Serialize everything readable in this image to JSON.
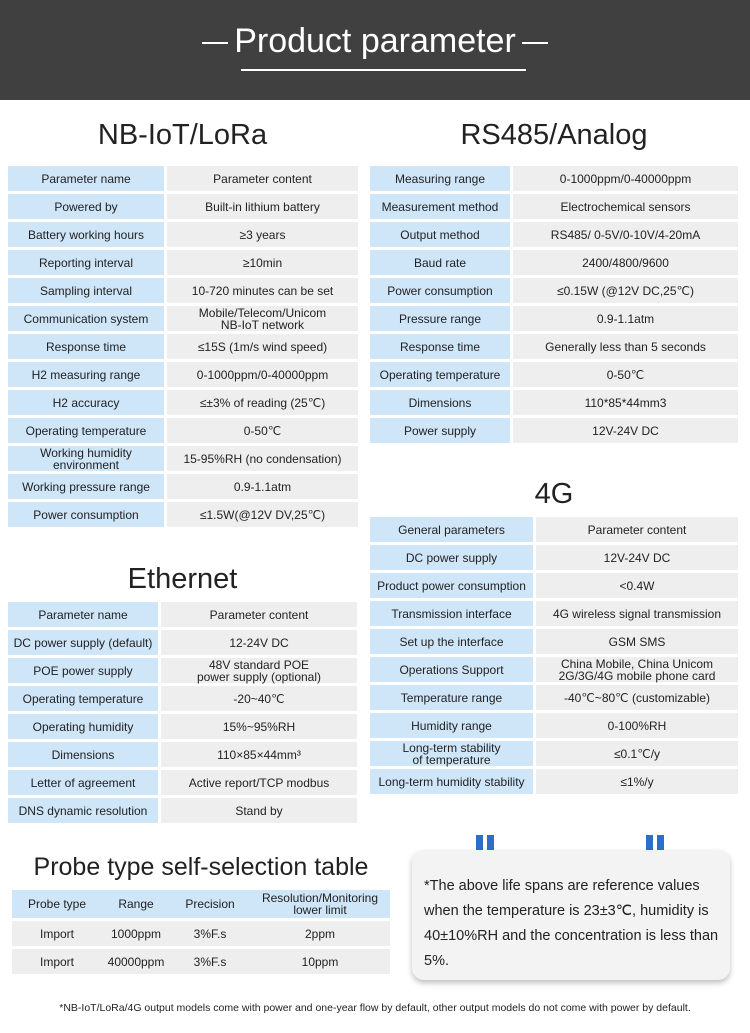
{
  "header": {
    "title": "Product parameter"
  },
  "nb": {
    "title": "NB-IoT/LoRa",
    "rows": [
      [
        "Parameter name",
        "Parameter content"
      ],
      [
        "Powered by",
        "Built-in lithium battery"
      ],
      [
        "Battery working hours",
        "≥3 years"
      ],
      [
        "Reporting interval",
        "≥10min"
      ],
      [
        "Sampling interval",
        "10-720 minutes can be set"
      ],
      [
        "Communication system",
        "Mobile/Telecom/Unicom\nNB-IoT network"
      ],
      [
        "Response time",
        "≤15S (1m/s wind speed)"
      ],
      [
        "H2 measuring range",
        "0-1000ppm/0-40000ppm"
      ],
      [
        "H2 accuracy",
        "≤±3% of reading (25℃)"
      ],
      [
        "Operating temperature",
        "0-50℃"
      ],
      [
        "Working humidity\nenvironment",
        "15-95%RH (no condensation)"
      ],
      [
        "Working pressure range",
        "0.9-1.1atm"
      ],
      [
        "Power consumption",
        "≤1.5W(@12V DV,25℃)"
      ]
    ]
  },
  "rs": {
    "title": "RS485/Analog",
    "rows": [
      [
        "Measuring range",
        "0-1000ppm/0-40000ppm"
      ],
      [
        "Measurement method",
        "Electrochemical sensors"
      ],
      [
        "Output method",
        "RS485/ 0-5V/0-10V/4-20mA"
      ],
      [
        "Baud rate",
        "2400/4800/9600"
      ],
      [
        "Power consumption",
        "≤0.15W (@12V DC,25℃)"
      ],
      [
        "Pressure range",
        "0.9-1.1atm"
      ],
      [
        "Response time",
        "Generally less than 5 seconds"
      ],
      [
        "Operating temperature",
        "0-50℃"
      ],
      [
        "Dimensions",
        "110*85*44mm3"
      ],
      [
        "Power supply",
        "12V-24V DC"
      ]
    ]
  },
  "g4": {
    "title": "4G",
    "rows": [
      [
        "General parameters",
        "Parameter content"
      ],
      [
        "DC power supply",
        "12V-24V DC"
      ],
      [
        "Product power consumption",
        "<0.4W"
      ],
      [
        "Transmission interface",
        "4G wireless signal transmission"
      ],
      [
        "Set up the interface",
        "GSM SMS"
      ],
      [
        "Operations Support",
        "China Mobile, China Unicom\n2G/3G/4G mobile phone card"
      ],
      [
        "Temperature range",
        "-40℃~80℃ (customizable)"
      ],
      [
        "Humidity range",
        "0-100%RH"
      ],
      [
        "Long-term stability\nof temperature",
        "≤0.1℃/y"
      ],
      [
        "Long-term humidity stability",
        "≤1%/y"
      ]
    ]
  },
  "eth": {
    "title": "Ethernet",
    "rows": [
      [
        "Parameter name",
        "Parameter content"
      ],
      [
        "DC power supply (default)",
        "12-24V DC"
      ],
      [
        "POE power supply",
        "48V standard POE\npower supply (optional)"
      ],
      [
        "Operating temperature",
        "-20~40℃"
      ],
      [
        "Operating humidity",
        "15%~95%RH"
      ],
      [
        "Dimensions",
        "110×85×44mm³"
      ],
      [
        "Letter of agreement",
        "Active report/TCP modbus"
      ],
      [
        "DNS dynamic resolution",
        "Stand by"
      ]
    ]
  },
  "probe": {
    "title": "Probe type self-selection table",
    "headers": [
      "Probe type",
      "Range",
      "Precision",
      "Resolution/Monitoring\nlower limit"
    ],
    "rows": [
      [
        "Import",
        "1000ppm",
        "3%F.s",
        "2ppm"
      ],
      [
        "Import",
        "40000ppm",
        "3%F.s",
        "10ppm"
      ]
    ]
  },
  "note": "*The above life spans are reference values when the temperature is 23±3℃, humidity is 40±10%RH and the concentration is less than 5%.",
  "footer": "*NB-IoT/LoRa/4G output models come with power and one-year flow by default, other output models do not come with power by default.",
  "colors": {
    "banner": "#404040",
    "key_cell": "#cfe5f8",
    "value_cell": "#eeeeee",
    "clip": "#2c6fc9"
  }
}
